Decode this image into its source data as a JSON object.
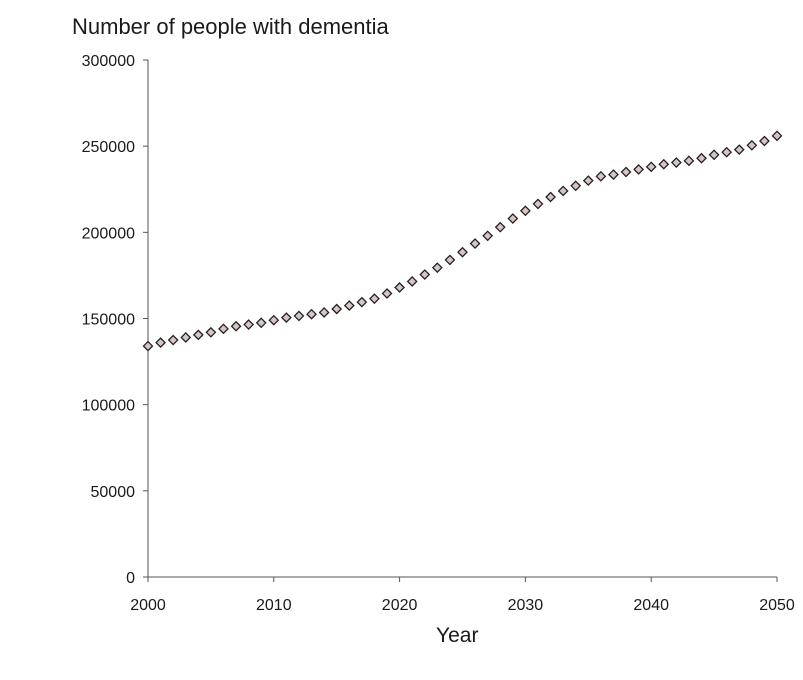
{
  "chart_data": {
    "type": "scatter",
    "title": "",
    "ylabel": "Number of people with dementia",
    "xlabel": "Year",
    "xlim": [
      2000,
      2050
    ],
    "ylim": [
      0,
      300000
    ],
    "xticks": [
      "2000",
      "2010",
      "2020",
      "2030",
      "2040",
      "2050"
    ],
    "yticks": [
      "0",
      "50000",
      "100000",
      "150000",
      "200000",
      "250000",
      "300000"
    ],
    "grid": false,
    "legend": "none",
    "marker": "diamond",
    "marker_color": "#d9c4c4",
    "series": [
      {
        "x": [
          2000,
          2001,
          2002,
          2003,
          2004,
          2005,
          2006,
          2007,
          2008,
          2009,
          2010,
          2011,
          2012,
          2013,
          2014,
          2015,
          2016,
          2017,
          2018,
          2019,
          2020,
          2021,
          2022,
          2023,
          2024,
          2025,
          2026,
          2027,
          2028,
          2029,
          2030,
          2031,
          2032,
          2033,
          2034,
          2035,
          2036,
          2037,
          2038,
          2039,
          2040,
          2041,
          2042,
          2043,
          2044,
          2045,
          2046,
          2047,
          2048,
          2049,
          2050
        ],
        "y": [
          134000,
          136000,
          137500,
          139000,
          140500,
          142000,
          144000,
          145500,
          146500,
          147500,
          149000,
          150500,
          151500,
          152500,
          153500,
          155500,
          157500,
          159500,
          161500,
          164500,
          168000,
          171500,
          175500,
          179500,
          184000,
          188500,
          193500,
          198000,
          203000,
          208000,
          212500,
          216500,
          220500,
          224000,
          227000,
          230000,
          232500,
          233500,
          235000,
          236500,
          238000,
          239500,
          240500,
          241500,
          243000,
          245000,
          246500,
          248000,
          250500,
          253000,
          256000
        ]
      }
    ]
  }
}
